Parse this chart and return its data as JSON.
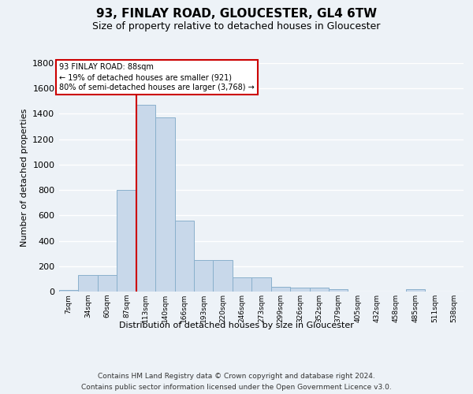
{
  "title1": "93, FINLAY ROAD, GLOUCESTER, GL4 6TW",
  "title2": "Size of property relative to detached houses in Gloucester",
  "xlabel": "Distribution of detached houses by size in Gloucester",
  "ylabel": "Number of detached properties",
  "categories": [
    "7sqm",
    "34sqm",
    "60sqm",
    "87sqm",
    "113sqm",
    "140sqm",
    "166sqm",
    "193sqm",
    "220sqm",
    "246sqm",
    "273sqm",
    "299sqm",
    "326sqm",
    "352sqm",
    "379sqm",
    "405sqm",
    "432sqm",
    "458sqm",
    "485sqm",
    "511sqm",
    "538sqm"
  ],
  "values": [
    10,
    130,
    130,
    800,
    1470,
    1370,
    560,
    250,
    250,
    110,
    110,
    35,
    30,
    30,
    20,
    2,
    2,
    2,
    20,
    2,
    2
  ],
  "bar_color": "#c8d8ea",
  "bar_edge_color": "#8ab0cc",
  "vline_index": 3,
  "vline_color": "#cc0000",
  "annotation_line1": "93 FINLAY ROAD: 88sqm",
  "annotation_line2": "← 19% of detached houses are smaller (921)",
  "annotation_line3": "80% of semi-detached houses are larger (3,768) →",
  "annotation_edge_color": "#cc0000",
  "ylim": [
    0,
    1800
  ],
  "yticks": [
    0,
    200,
    400,
    600,
    800,
    1000,
    1200,
    1400,
    1600,
    1800
  ],
  "bg_color": "#edf2f7",
  "grid_color": "#ffffff",
  "footer1": "Contains HM Land Registry data © Crown copyright and database right 2024.",
  "footer2": "Contains public sector information licensed under the Open Government Licence v3.0."
}
